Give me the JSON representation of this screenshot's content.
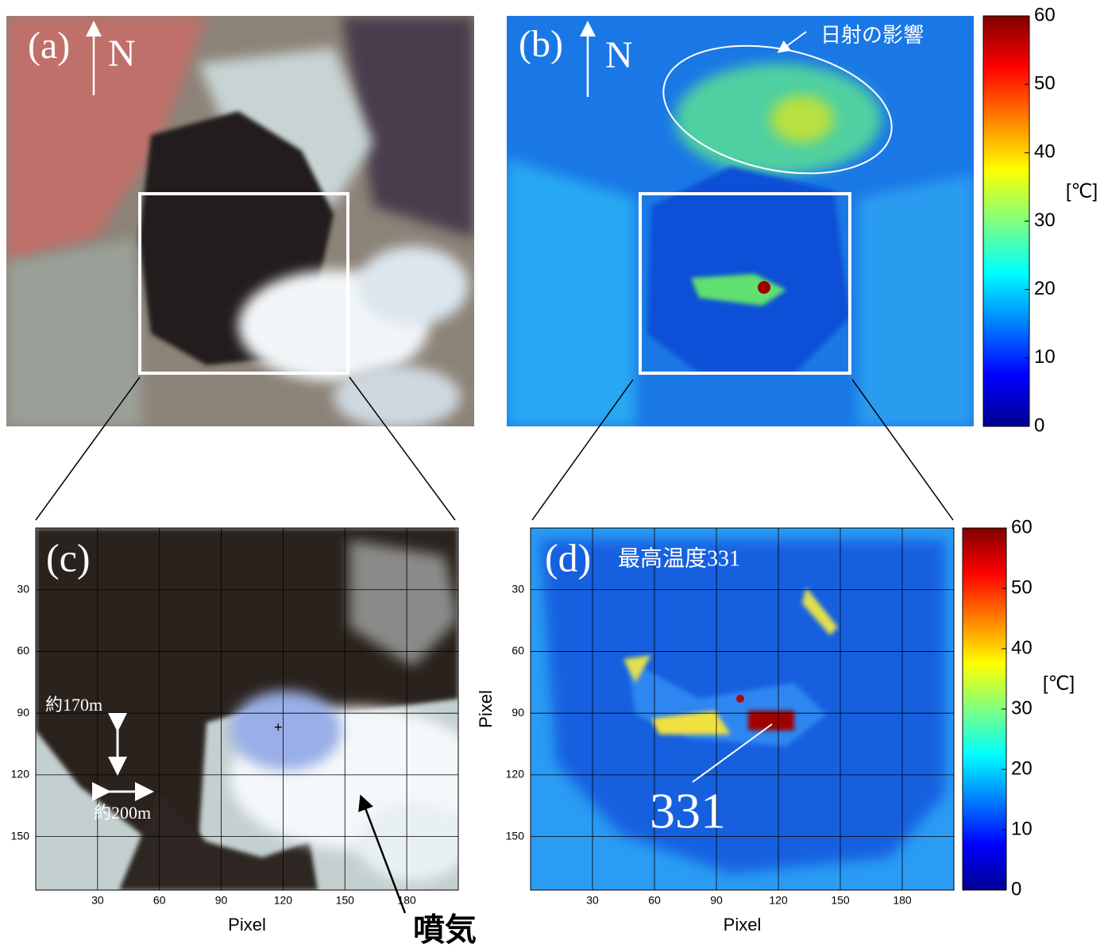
{
  "panel_a": {
    "label": "(a)",
    "north": "N"
  },
  "panel_b": {
    "label": "(b)",
    "north": "N",
    "annotation": "日射の影響",
    "colorbar": {
      "lim": [
        0,
        60
      ],
      "ticks": [
        0,
        10,
        20,
        30,
        40,
        50,
        60
      ],
      "unit": "[℃]"
    }
  },
  "panel_c": {
    "label": "(c)",
    "xlim": [
      0,
      205
    ],
    "ylim": [
      0,
      176
    ],
    "xticks": [
      30,
      60,
      90,
      120,
      150,
      180
    ],
    "yticks": [
      30,
      60,
      90,
      120,
      150
    ],
    "xlabel": "Pixel",
    "vertical_scale": "約170m",
    "horizontal_scale": "約200m",
    "plume": "噴気"
  },
  "panel_d": {
    "label": "(d)",
    "title": "最高温度331",
    "xlim": [
      0,
      205
    ],
    "ylim": [
      0,
      176
    ],
    "xticks": [
      30,
      60,
      90,
      120,
      150,
      180
    ],
    "yticks": [
      30,
      60,
      90,
      120,
      150
    ],
    "xlabel": "Pixel",
    "ylabel": "Pixel",
    "max_label": "331",
    "colorbar": {
      "lim": [
        0,
        60
      ],
      "ticks": [
        0,
        10,
        20,
        30,
        40,
        50,
        60
      ],
      "unit": "[℃]"
    }
  }
}
